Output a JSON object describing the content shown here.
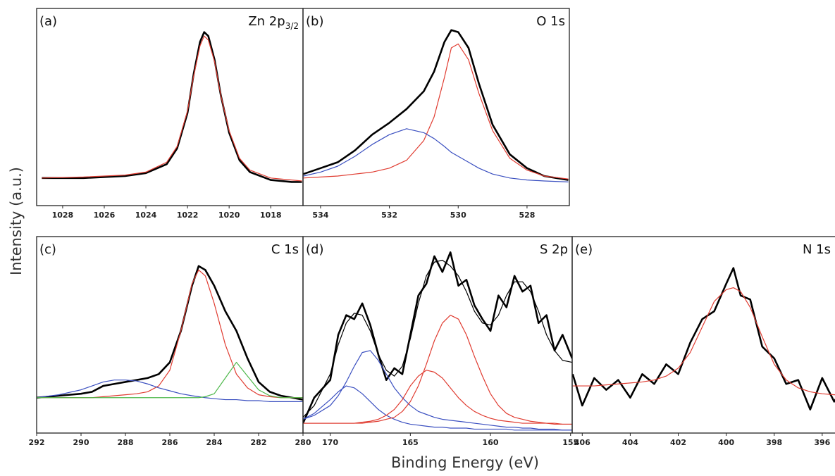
{
  "y_label": "Intensity (a.u.)",
  "x_label": "Binding Energy (eV)",
  "chart_data": [
    {
      "type": "line",
      "panel_label": "(a)",
      "title": "Zn 2p",
      "title_sub": "3/2",
      "xlim": [
        1029.25,
        1016.45
      ],
      "ylim": [
        0,
        100
      ],
      "xticks": [
        1028,
        1026,
        1024,
        1022,
        1020,
        1018
      ],
      "x": [
        1029,
        1027,
        1025,
        1024,
        1023,
        1022.5,
        1022,
        1021.7,
        1021.4,
        1021.2,
        1021,
        1020.7,
        1020.4,
        1020,
        1019.5,
        1019,
        1018,
        1017,
        1016.5
      ],
      "series": [
        {
          "color": "#000000",
          "values": [
            14,
            14,
            15,
            16.5,
            21,
            29,
            47,
            67,
            83,
            88,
            86,
            74,
            56,
            37,
            23,
            17,
            13,
            12,
            12
          ]
        },
        {
          "color": "#e03c31",
          "values": [
            14,
            14.5,
            15.5,
            17,
            22,
            30,
            48,
            66,
            81,
            86,
            84,
            73,
            56,
            38,
            24,
            18,
            14,
            13,
            12.5
          ]
        }
      ]
    },
    {
      "type": "line",
      "panel_label": "(b)",
      "title": "O 1s",
      "xlim": [
        534.51,
        526.77
      ],
      "ylim": [
        0,
        100
      ],
      "xticks": [
        534,
        532,
        530,
        528
      ],
      "x": [
        534.5,
        534,
        533.5,
        533,
        532.5,
        532,
        531.5,
        531,
        530.7,
        530.4,
        530.2,
        530,
        529.7,
        529.4,
        529,
        528.5,
        528,
        527.5,
        526.8
      ],
      "series": [
        {
          "color": "#000000",
          "values": [
            16,
            19,
            22,
            28,
            36,
            42,
            49,
            58,
            68,
            83,
            89,
            88,
            80,
            62,
            41,
            26,
            19,
            15,
            13
          ]
        },
        {
          "color": "#e03c31",
          "values": [
            14,
            14.5,
            15,
            16,
            17,
            19,
            23,
            33,
            45,
            65,
            80,
            82,
            74,
            57,
            38,
            24,
            18,
            15,
            13.5
          ]
        },
        {
          "color": "#3a4fc0",
          "values": [
            15,
            17,
            20,
            25,
            31,
            36,
            39,
            37,
            34,
            30,
            27,
            25,
            22,
            19,
            16,
            14,
            13,
            12.5,
            12
          ]
        }
      ]
    },
    {
      "type": "line",
      "panel_label": "(c)",
      "title": "C 1s",
      "xlim": [
        292,
        280
      ],
      "ylim": [
        0,
        100
      ],
      "xticks": [
        292,
        290,
        288,
        286,
        284,
        282,
        280
      ],
      "x": [
        292,
        291,
        290,
        289.5,
        289,
        288.5,
        288,
        287.5,
        287,
        286.5,
        286,
        285.5,
        285,
        284.7,
        284.4,
        284,
        283.5,
        283,
        282.5,
        282,
        281.5,
        281,
        280.5,
        280
      ],
      "series": [
        {
          "color": "#000000",
          "values": [
            18,
            19,
            20,
            21,
            24,
            25,
            26,
            27,
            28,
            30,
            36,
            52,
            75,
            85,
            83,
            75,
            62,
            52,
            38,
            26,
            21,
            19,
            18,
            17
          ]
        },
        {
          "color": "#e03c31",
          "values": [
            18,
            18,
            18,
            18,
            18.5,
            19,
            19.5,
            20,
            21,
            24,
            32,
            52,
            76,
            83,
            80,
            66,
            45,
            30,
            23,
            19.5,
            18.5,
            18,
            18,
            18
          ]
        },
        {
          "color": "#3a4fc0",
          "values": [
            18,
            19.5,
            22,
            24,
            26,
            27,
            27,
            26.5,
            25,
            23,
            21.5,
            20,
            19,
            18.5,
            18,
            17.5,
            17,
            17,
            16.5,
            16.5,
            16,
            16,
            16,
            16
          ]
        },
        {
          "color": "#4db84a",
          "values": [
            18,
            18,
            18,
            18,
            18,
            18,
            18,
            18,
            18,
            18,
            18,
            18,
            18,
            18,
            18.5,
            20,
            28,
            36,
            29,
            22,
            19,
            18,
            18,
            18
          ]
        }
      ]
    },
    {
      "type": "line",
      "panel_label": "(d)",
      "title": "S 2p",
      "xlim": [
        171.7,
        154.9
      ],
      "ylim": [
        0,
        100
      ],
      "xticks": [
        170,
        165,
        160,
        155
      ],
      "x": [
        171.7,
        171,
        170,
        169.5,
        169,
        168.5,
        168,
        167.5,
        167,
        166.5,
        166,
        165.5,
        165,
        164.5,
        164,
        163.5,
        163,
        162.5,
        162,
        161.5,
        161,
        160.5,
        160,
        159.5,
        159,
        158.5,
        158,
        157.5,
        157,
        156.5,
        156,
        155.5,
        154.9
      ],
      "series": [
        {
          "color": "#000000",
          "values": [
            5,
            18,
            27,
            50,
            60,
            58,
            66,
            55,
            40,
            27,
            33,
            30,
            50,
            70,
            76,
            90,
            82,
            92,
            75,
            78,
            65,
            58,
            52,
            70,
            64,
            80,
            72,
            75,
            56,
            60,
            42,
            50,
            38
          ]
        },
        {
          "color": "#000000",
          "values": [
            8,
            14,
            30,
            45,
            56,
            61,
            60,
            52,
            40,
            32,
            29,
            34,
            48,
            66,
            80,
            87,
            88,
            85,
            80,
            72,
            62,
            56,
            55,
            60,
            70,
            77,
            77,
            72,
            62,
            50,
            42,
            37,
            36
          ]
        },
        {
          "color": "#3a4fc0",
          "values": [
            7,
            9,
            14,
            19,
            26,
            34,
            41,
            42,
            37,
            30,
            23,
            18,
            14,
            11,
            9.5,
            8,
            7,
            6.5,
            6,
            5.5,
            5,
            4.5,
            4,
            3.5,
            3,
            3,
            2.5,
            2.5,
            2,
            2,
            2,
            1.5,
            1.5
          ]
        },
        {
          "color": "#3a4fc0",
          "values": [
            7,
            10,
            17,
            21,
            24,
            23,
            20,
            16,
            12,
            9,
            7,
            5.5,
            4.5,
            4,
            3.5,
            3,
            3,
            2.5,
            2.5,
            2.5,
            2,
            2,
            2,
            2,
            2,
            1.5,
            1.5,
            1.5,
            1.5,
            1.5,
            1.5,
            1.5,
            1.5
          ]
        },
        {
          "color": "#e03c31",
          "values": [
            5,
            5,
            5,
            5,
            5,
            5,
            5.5,
            6,
            7,
            9,
            12,
            17,
            24,
            29,
            32,
            31,
            28,
            23,
            18,
            14,
            11,
            9,
            7.5,
            6.5,
            6,
            5.5,
            5,
            5,
            5,
            5,
            4.5,
            4.5,
            4.5
          ]
        },
        {
          "color": "#e03c31",
          "values": [
            5,
            5,
            5,
            5,
            5,
            5,
            5,
            5.5,
            6,
            7,
            8,
            11,
            16,
            24,
            35,
            47,
            56,
            60,
            58,
            50,
            39,
            29,
            20,
            14,
            10,
            8,
            7,
            6,
            5.5,
            5,
            5,
            4.5,
            4.5
          ]
        }
      ]
    },
    {
      "type": "line",
      "panel_label": "(e)",
      "title": "N 1s",
      "xlim": [
        406.42,
        395.32
      ],
      "ylim": [
        0,
        100
      ],
      "xticks": [
        406,
        404,
        402,
        400,
        398,
        396
      ],
      "x": [
        406.4,
        406,
        405.5,
        405,
        404.5,
        404,
        403.5,
        403,
        402.5,
        402,
        401.5,
        401,
        400.5,
        400,
        399.7,
        399.4,
        399,
        398.5,
        398,
        397.5,
        397,
        396.5,
        396,
        395.5,
        395.3
      ],
      "series": [
        {
          "color": "#000000",
          "values": [
            30,
            14,
            28,
            22,
            27,
            18,
            30,
            25,
            35,
            30,
            46,
            58,
            62,
            76,
            84,
            70,
            68,
            44,
            38,
            25,
            27,
            12,
            28,
            16,
            20
          ]
        },
        {
          "color": "#e03c31",
          "values": [
            24,
            24,
            24,
            24.5,
            25,
            25.5,
            26,
            27,
            29,
            33,
            41,
            54,
            67,
            73,
            74,
            72,
            64,
            49,
            35,
            27,
            23,
            21,
            20,
            19.5,
            19.5
          ]
        }
      ]
    }
  ]
}
